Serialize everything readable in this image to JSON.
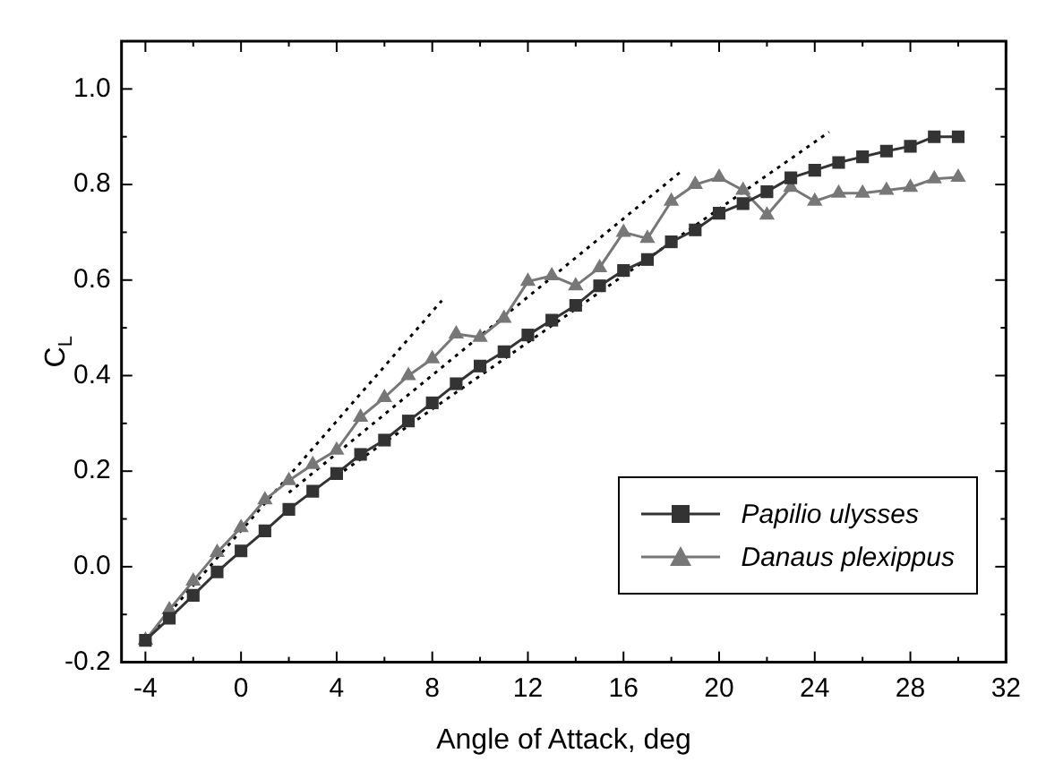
{
  "chart_data": {
    "type": "line",
    "xlabel": "Angle of Attack, deg",
    "ylabel": "C$_{L}$",
    "xlim": [
      -5,
      32
    ],
    "xticks": [
      -4,
      0,
      4,
      8,
      12,
      16,
      20,
      24,
      28,
      32
    ],
    "ylim": [
      -0.2,
      1.1
    ],
    "yticks": [
      {
        "value": -0.2,
        "label": "-0.2"
      },
      {
        "value": 0,
        "label": "0.0"
      },
      {
        "value": 0.2,
        "label": "0.2"
      },
      {
        "value": 0.4,
        "label": "0.4"
      },
      {
        "value": 0.6,
        "label": "0.6"
      },
      {
        "value": 0.8,
        "label": "0.8"
      },
      {
        "value": 1,
        "label": "1.0"
      }
    ],
    "grid": false,
    "legend": "bottom right",
    "series": [
      {
        "name": "Papilio ulysses",
        "color": "#333333",
        "marker": "square",
        "line_style": "solid",
        "x": [
          -4,
          -3,
          -2,
          -1,
          0,
          1,
          2,
          3,
          4,
          5,
          6,
          7,
          8,
          9,
          10,
          11,
          12,
          13,
          14,
          15,
          16,
          17,
          18,
          19,
          20,
          21,
          22,
          23,
          24,
          25,
          26,
          27,
          28,
          29,
          30
        ],
        "values": [
          -0.154,
          -0.108,
          -0.06,
          -0.011,
          0.033,
          0.075,
          0.12,
          0.158,
          0.195,
          0.235,
          0.265,
          0.305,
          0.343,
          0.383,
          0.42,
          0.45,
          0.485,
          0.516,
          0.547,
          0.588,
          0.62,
          0.643,
          0.68,
          0.705,
          0.74,
          0.76,
          0.785,
          0.814,
          0.83,
          0.846,
          0.858,
          0.87,
          0.88,
          0.9,
          0.9
        ]
      },
      {
        "name": "Danaus plexippus",
        "color": "#777777",
        "marker": "triangle",
        "line_style": "solid",
        "x": [
          -4,
          -3,
          -2,
          -1,
          0,
          1,
          2,
          3,
          4,
          5,
          6,
          7,
          8,
          9,
          10,
          11,
          12,
          13,
          14,
          15,
          16,
          17,
          18,
          19,
          20,
          21,
          22,
          23,
          24,
          25,
          26,
          27,
          28,
          29,
          30
        ],
        "values": [
          -0.154,
          -0.09,
          -0.03,
          0.03,
          0.082,
          0.14,
          0.18,
          0.214,
          0.244,
          0.313,
          0.354,
          0.4,
          0.435,
          0.487,
          0.48,
          0.52,
          0.597,
          0.609,
          0.588,
          0.626,
          0.7,
          0.687,
          0.765,
          0.8,
          0.815,
          0.788,
          0.736,
          0.794,
          0.765,
          0.782,
          0.782,
          0.788,
          0.794,
          0.812,
          0.815
        ]
      },
      {
        "type": "line",
        "color": "#000000",
        "marker": "none",
        "line_style": "dotted",
        "x": [
          -4,
          8.4
        ],
        "values": [
          -0.154,
          0.557
        ]
      },
      {
        "type": "line",
        "color": "#000000",
        "marker": "none",
        "line_style": "dotted",
        "x": [
          2,
          18.4
        ],
        "values": [
          0.155,
          0.827
        ]
      },
      {
        "type": "line",
        "color": "#000000",
        "marker": "none",
        "line_style": "dotted",
        "x": [
          4,
          24.6
        ],
        "values": [
          0.19,
          0.91
        ]
      }
    ]
  }
}
